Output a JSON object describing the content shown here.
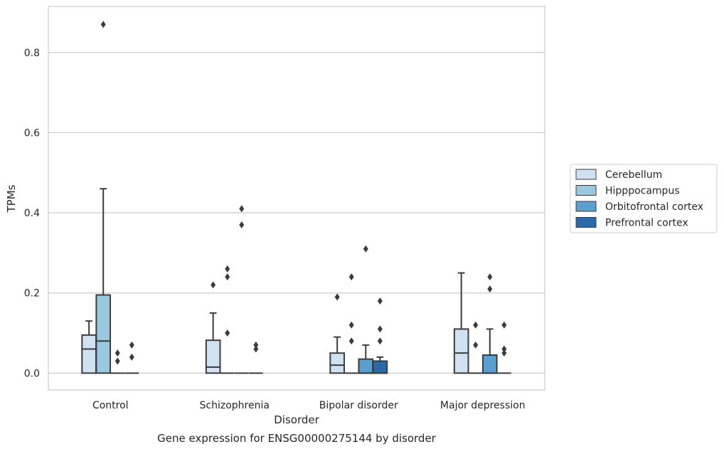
{
  "chart_data": {
    "type": "box",
    "title": "",
    "caption": "Gene expression for ENSG00000275144 by disorder",
    "xlabel": "Disorder",
    "ylabel": "TPMs",
    "ylim": [
      -0.042,
      0.915
    ],
    "yticks": [
      0.0,
      0.2,
      0.4,
      0.6,
      0.8
    ],
    "yticklabels": [
      "0.0",
      "0.2",
      "0.4",
      "0.6",
      "0.8"
    ],
    "grid": "horizontal",
    "legend_position": "right",
    "categories": [
      "Control",
      "Schizophrenia",
      "Bipolar disorder",
      "Major depression"
    ],
    "series": [
      {
        "name": "Cerebellum",
        "color": "#d0e1f2",
        "boxes": [
          {
            "category": "Control",
            "whisker_low": 0.0,
            "q1": 0.0,
            "median": 0.06,
            "q3": 0.095,
            "whisker_high": 0.13,
            "outliers": []
          },
          {
            "category": "Schizophrenia",
            "whisker_low": 0.0,
            "q1": 0.0,
            "median": 0.015,
            "q3": 0.082,
            "whisker_high": 0.15,
            "outliers": [
              0.22
            ]
          },
          {
            "category": "Bipolar disorder",
            "whisker_low": 0.0,
            "q1": 0.0,
            "median": 0.02,
            "q3": 0.05,
            "whisker_high": 0.09,
            "outliers": [
              0.19
            ]
          },
          {
            "category": "Major depression",
            "whisker_low": 0.0,
            "q1": 0.0,
            "median": 0.05,
            "q3": 0.11,
            "whisker_high": 0.25,
            "outliers": []
          }
        ]
      },
      {
        "name": "Hipppocampus",
        "color": "#9ac8e0",
        "boxes": [
          {
            "category": "Control",
            "whisker_low": 0.0,
            "q1": 0.0,
            "median": 0.08,
            "q3": 0.195,
            "whisker_high": 0.46,
            "outliers": [
              0.87
            ]
          },
          {
            "category": "Schizophrenia",
            "whisker_low": 0.0,
            "q1": 0.0,
            "median": 0.0,
            "q3": 0.0,
            "whisker_high": 0.0,
            "outliers": [
              0.1,
              0.24,
              0.26
            ]
          },
          {
            "category": "Bipolar disorder",
            "whisker_low": 0.0,
            "q1": 0.0,
            "median": 0.0,
            "q3": 0.0,
            "whisker_high": 0.0,
            "outliers": [
              0.08,
              0.12,
              0.24
            ]
          },
          {
            "category": "Major depression",
            "whisker_low": 0.0,
            "q1": 0.0,
            "median": 0.0,
            "q3": 0.0,
            "whisker_high": 0.0,
            "outliers": [
              0.07,
              0.12
            ]
          }
        ]
      },
      {
        "name": "Orbitofrontal cortex",
        "color": "#5a9fcd",
        "boxes": [
          {
            "category": "Control",
            "whisker_low": 0.0,
            "q1": 0.0,
            "median": 0.0,
            "q3": 0.0,
            "whisker_high": 0.0,
            "outliers": [
              0.03,
              0.05
            ]
          },
          {
            "category": "Schizophrenia",
            "whisker_low": 0.0,
            "q1": 0.0,
            "median": 0.0,
            "q3": 0.0,
            "whisker_high": 0.0,
            "outliers": [
              0.37,
              0.41
            ]
          },
          {
            "category": "Bipolar disorder",
            "whisker_low": 0.0,
            "q1": 0.0,
            "median": 0.0,
            "q3": 0.035,
            "whisker_high": 0.07,
            "outliers": [
              0.31
            ]
          },
          {
            "category": "Major depression",
            "whisker_low": 0.0,
            "q1": 0.0,
            "median": 0.0,
            "q3": 0.045,
            "whisker_high": 0.11,
            "outliers": [
              0.21,
              0.24
            ]
          }
        ]
      },
      {
        "name": "Prefrontal cortex",
        "color": "#2b6aa7",
        "boxes": [
          {
            "category": "Control",
            "whisker_low": 0.0,
            "q1": 0.0,
            "median": 0.0,
            "q3": 0.0,
            "whisker_high": 0.0,
            "outliers": [
              0.04,
              0.07
            ]
          },
          {
            "category": "Schizophrenia",
            "whisker_low": 0.0,
            "q1": 0.0,
            "median": 0.0,
            "q3": 0.0,
            "whisker_high": 0.0,
            "outliers": [
              0.06,
              0.07
            ]
          },
          {
            "category": "Bipolar disorder",
            "whisker_low": 0.0,
            "q1": 0.0,
            "median": 0.0,
            "q3": 0.03,
            "whisker_high": 0.04,
            "outliers": [
              0.08,
              0.11,
              0.18
            ]
          },
          {
            "category": "Major depression",
            "whisker_low": 0.0,
            "q1": 0.0,
            "median": 0.0,
            "q3": 0.0,
            "whisker_high": 0.0,
            "outliers": [
              0.05,
              0.06,
              0.12
            ]
          }
        ]
      }
    ]
  }
}
